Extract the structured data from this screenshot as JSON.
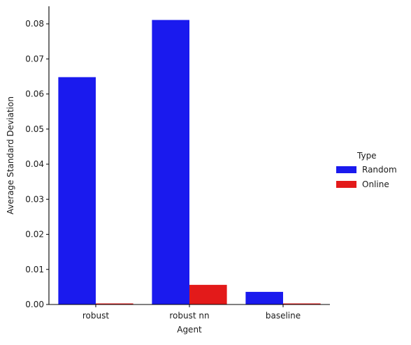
{
  "chart_data": {
    "type": "bar",
    "title": "",
    "xlabel": "Agent",
    "ylabel": "Average Standard Deviation",
    "categories": [
      "robust",
      "robust nn",
      "baseline"
    ],
    "series": [
      {
        "name": "Random",
        "color": "#1a1aee",
        "values": [
          0.0648,
          0.0811,
          0.0036
        ]
      },
      {
        "name": "Online",
        "color": "#e31a1a",
        "values": [
          0.0003,
          0.0056,
          0.0003
        ]
      }
    ],
    "ylim": [
      0,
      0.085
    ],
    "yticks": [
      "0.00",
      "0.01",
      "0.02",
      "0.03",
      "0.04",
      "0.05",
      "0.06",
      "0.07",
      "0.08"
    ],
    "grid": false,
    "legend": {
      "title": "Type",
      "placement": "right"
    }
  }
}
